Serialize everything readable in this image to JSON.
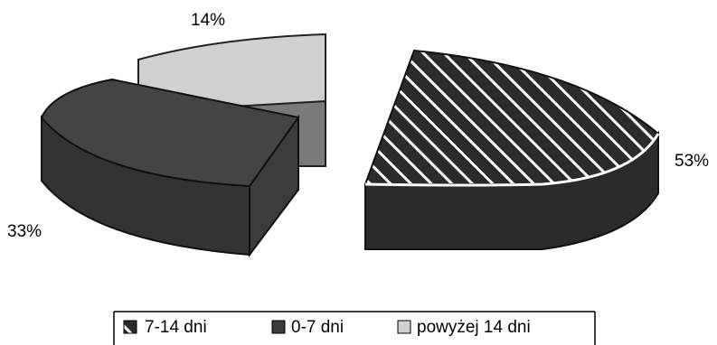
{
  "chart_data": {
    "type": "pie",
    "style": "3d-exploded",
    "slices": [
      {
        "label": "7-14 dni",
        "value": 53,
        "value_label": "53%",
        "fill": "hatched",
        "color": "#2f2f2f"
      },
      {
        "label": "0-7 dni",
        "value": 33,
        "value_label": "33%",
        "fill": "solid",
        "color": "#3b3b3b"
      },
      {
        "label": "powyżej 14 dni",
        "value": 14,
        "value_label": "14%",
        "fill": "solid",
        "color": "#d0d0d0"
      }
    ],
    "legend_position": "bottom"
  }
}
